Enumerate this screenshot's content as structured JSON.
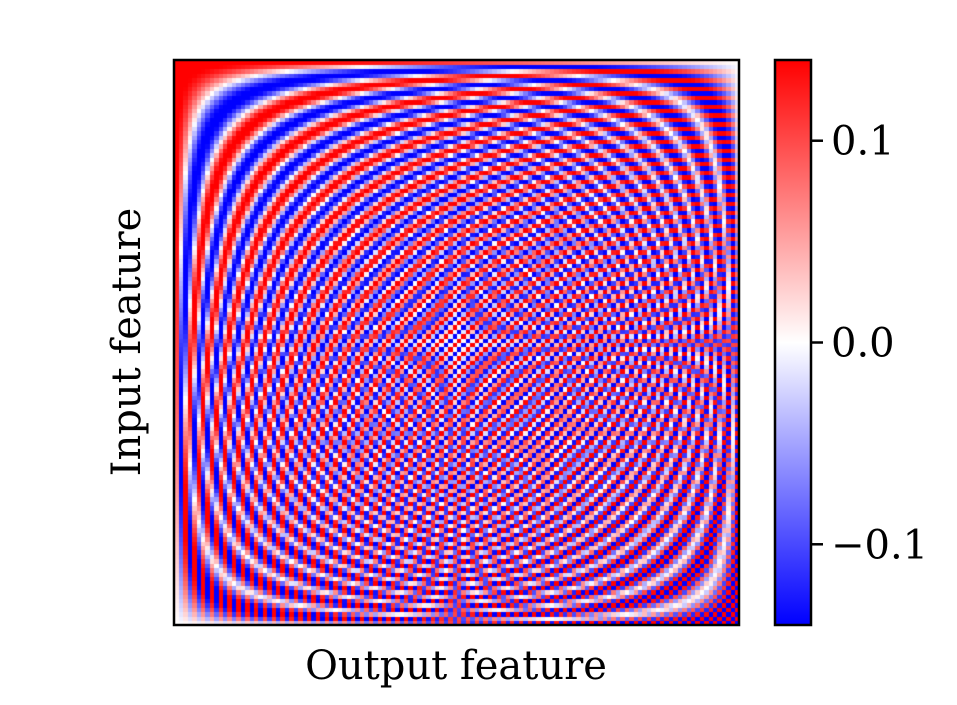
{
  "chart_data": {
    "type": "heatmap",
    "title": "",
    "xlabel": "Output feature",
    "ylabel": "Input feature",
    "x_ticks": [],
    "y_ticks": [],
    "grid": false,
    "matrix_size": 128,
    "colormap": {
      "name": "bwr",
      "low_color": "#0000ff",
      "mid_color": "#ffffff",
      "high_color": "#ff0000"
    },
    "colorbar": {
      "vmin": -0.14,
      "vmax": 0.14,
      "ticks": [
        {
          "value": 0.1,
          "label": "0.1"
        },
        {
          "value": 0.0,
          "label": "0.0"
        },
        {
          "value": -0.1,
          "label": "−0.1"
        }
      ]
    }
  }
}
